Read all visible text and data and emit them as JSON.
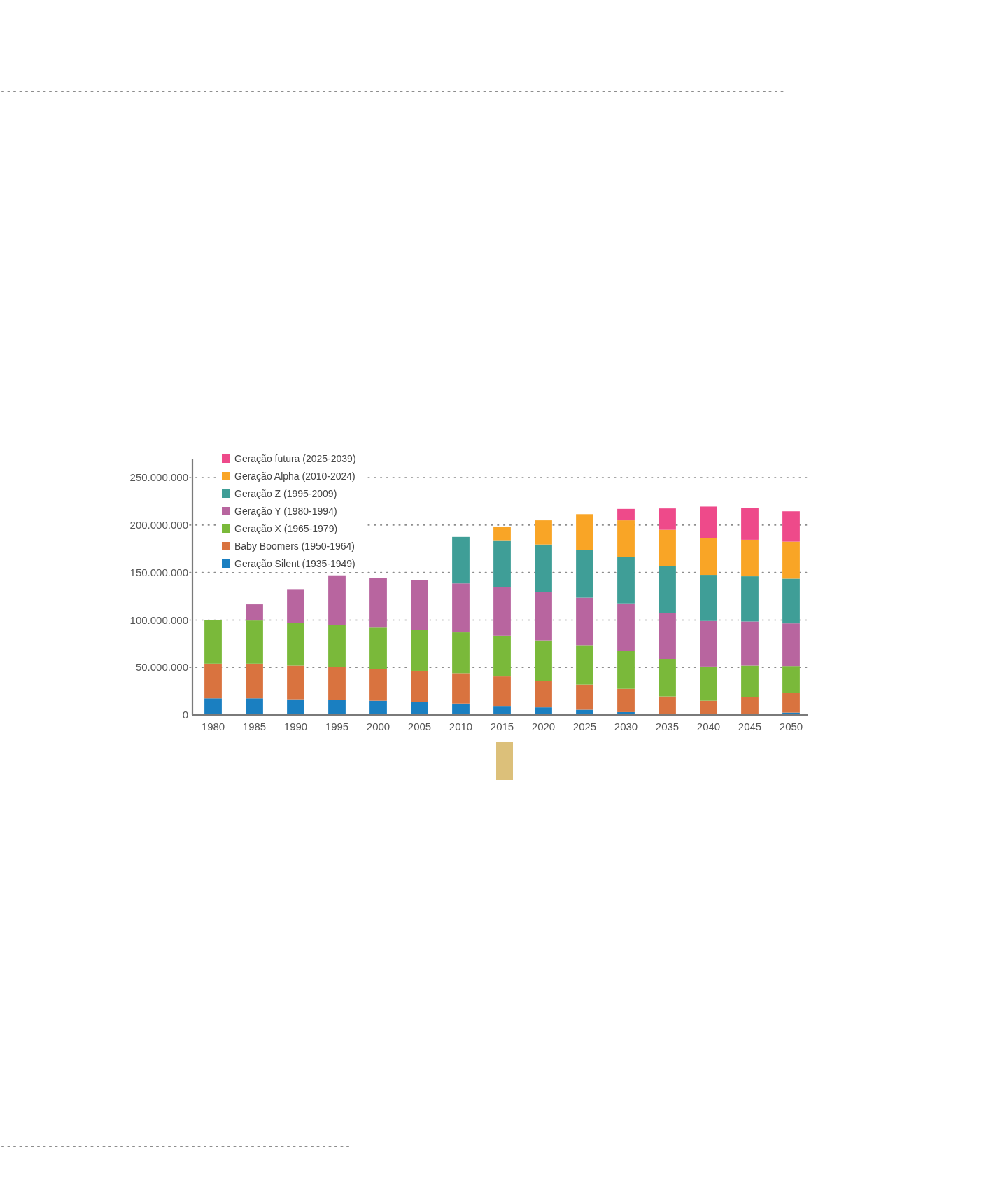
{
  "chart_data": {
    "type": "bar",
    "stacked": true,
    "categories": [
      "1980",
      "1985",
      "1990",
      "1995",
      "2000",
      "2005",
      "2010",
      "2015",
      "2020",
      "2025",
      "2030",
      "2035",
      "2040",
      "2045",
      "2050"
    ],
    "series": [
      {
        "name": "Geração Silent (1935-1949)",
        "color": "#1a7fc1",
        "values": [
          17500000,
          17500000,
          16500000,
          15500000,
          15000000,
          13500000,
          12000000,
          9500000,
          8000000,
          5500000,
          3000000,
          null,
          null,
          null,
          2500000
        ]
      },
      {
        "name": "Baby Boomers (1950-1964)",
        "color": "#d9733f",
        "values": [
          36500000,
          36500000,
          35500000,
          35000000,
          33000000,
          33000000,
          32000000,
          31000000,
          27500000,
          26500000,
          24500000,
          19500000,
          15000000,
          18500000,
          20500000
        ]
      },
      {
        "name": "Geração X (1965-1979)",
        "color": "#7ab93a",
        "values": [
          46000000,
          45500000,
          45000000,
          44500000,
          44000000,
          43500000,
          43000000,
          43000000,
          43000000,
          41500000,
          40000000,
          39500000,
          36000000,
          33500000,
          28500000
        ]
      },
      {
        "name": "Geração Y (1980-1994)",
        "color": "#b8659f",
        "values": [
          null,
          17000000,
          35500000,
          52000000,
          52500000,
          52000000,
          51500000,
          51000000,
          51000000,
          50000000,
          50000000,
          48500000,
          48000000,
          46500000,
          45000000
        ]
      },
      {
        "name": "Geração Z (1995-2009)",
        "color": "#3f9e97",
        "values": [
          null,
          null,
          null,
          null,
          null,
          null,
          49000000,
          49500000,
          50000000,
          50000000,
          49000000,
          49000000,
          48500000,
          47500000,
          47000000
        ]
      },
      {
        "name": "Geração Alpha (2010-2024)",
        "color": "#f9a526",
        "values": [
          null,
          null,
          null,
          null,
          null,
          null,
          null,
          14000000,
          25500000,
          38000000,
          38500000,
          38500000,
          38500000,
          38500000,
          39000000
        ]
      },
      {
        "name": "Geração futura (2025-2039)",
        "color": "#ee4a8a",
        "values": [
          null,
          null,
          null,
          null,
          null,
          null,
          null,
          null,
          null,
          null,
          12000000,
          22500000,
          33500000,
          33500000,
          32000000
        ]
      }
    ],
    "ylim": [
      0,
      270000000
    ],
    "yticks": [
      0,
      {
        "value": 50000000,
        "label": "50.000.000"
      },
      {
        "value": 100000000,
        "label": "100.000.000"
      },
      {
        "value": 150000000,
        "label": "150.000.000"
      },
      {
        "value": 200000000,
        "label": "200.000.000"
      },
      {
        "value": 250000000,
        "label": "250.000.000"
      }
    ],
    "grid": "y",
    "legend": "top left"
  }
}
